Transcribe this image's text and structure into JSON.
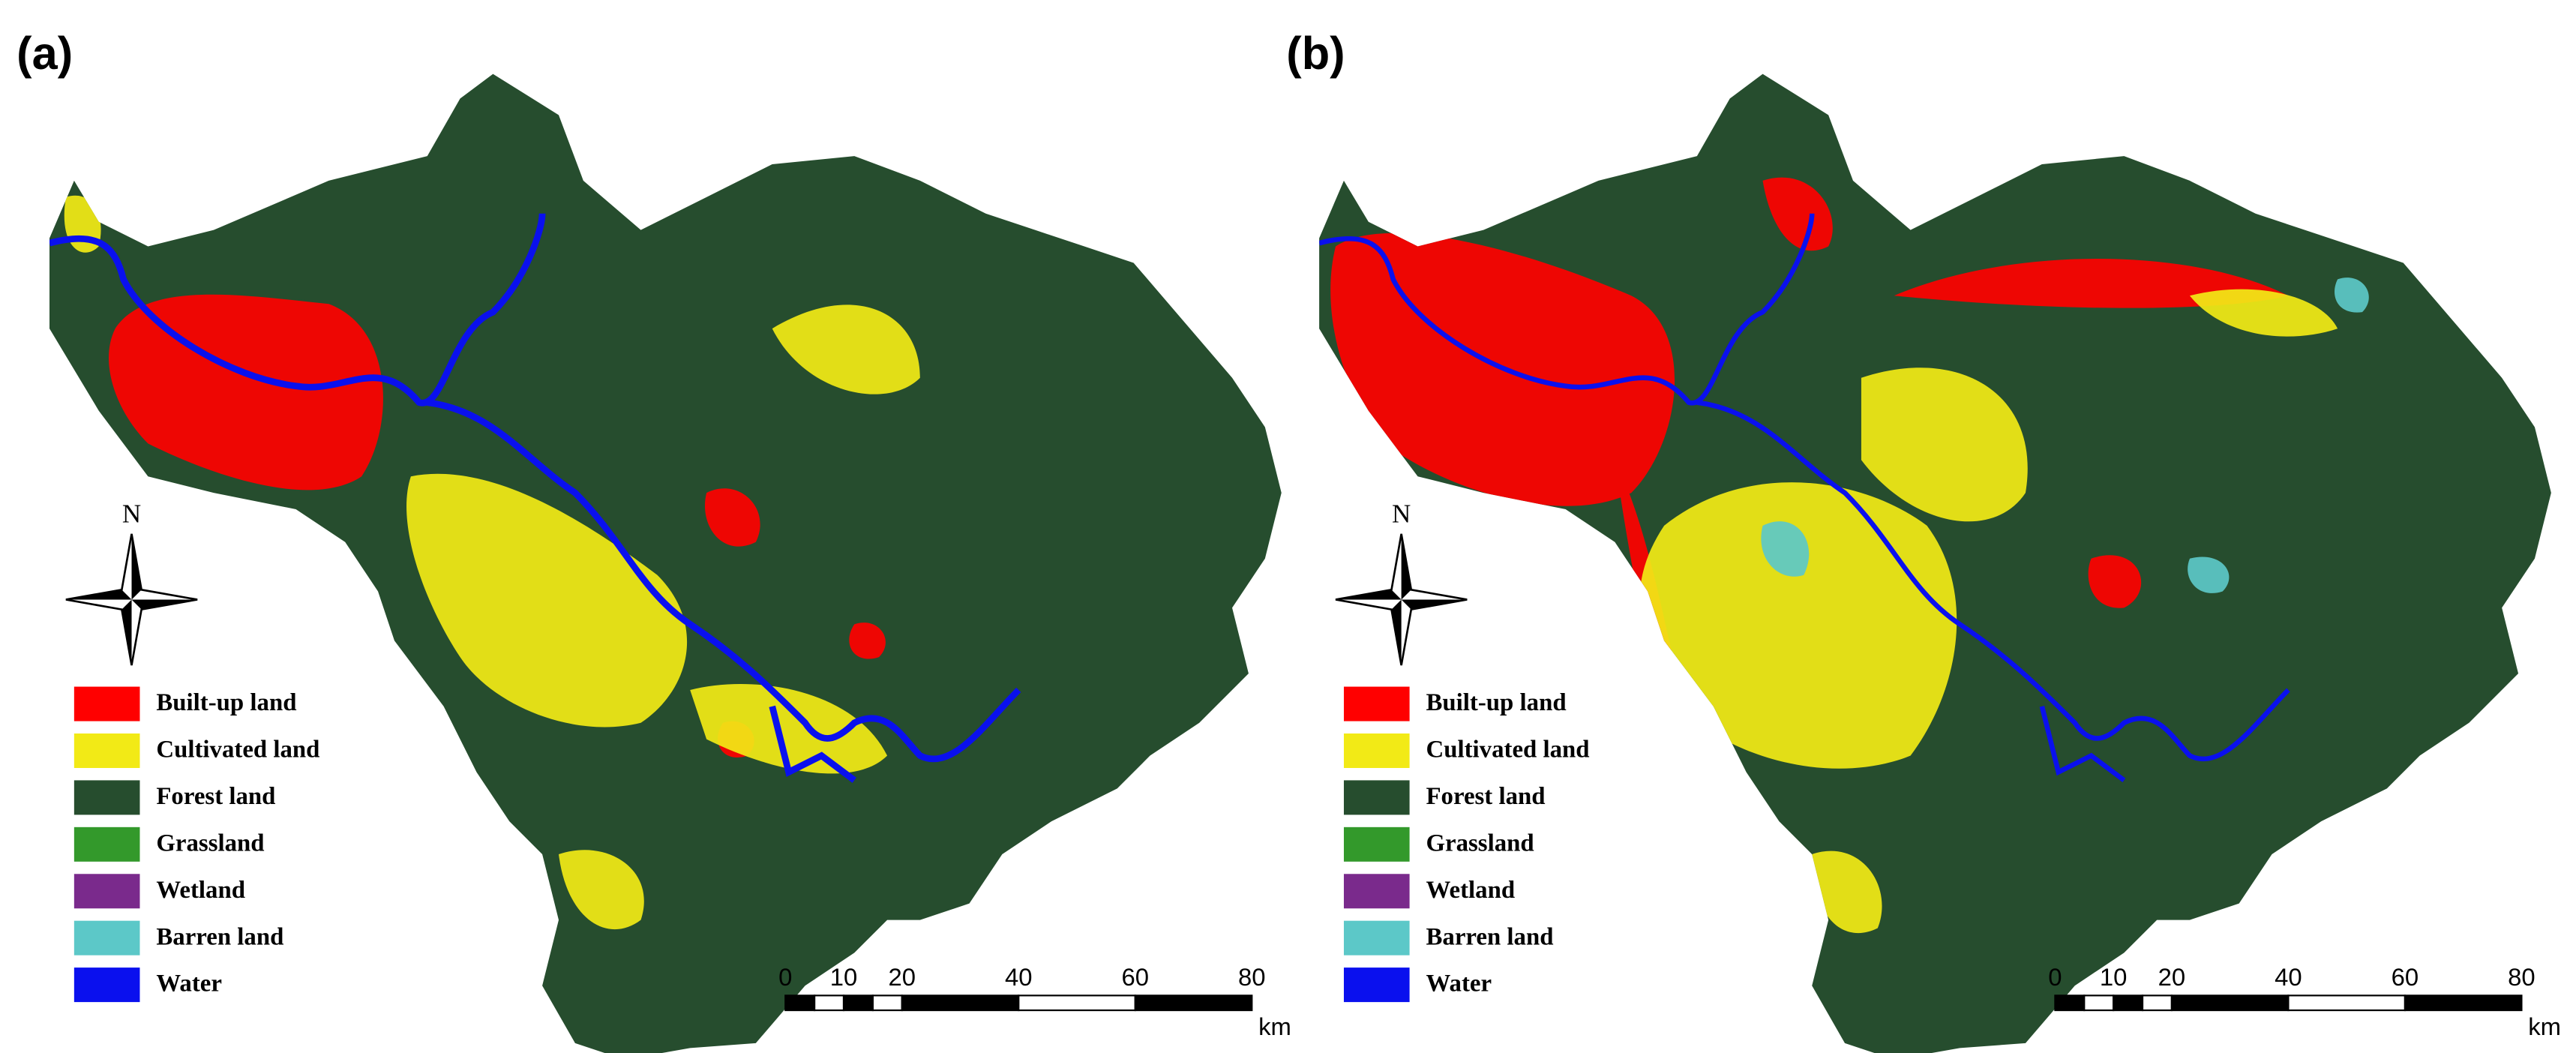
{
  "panels": [
    {
      "label": "(a)"
    },
    {
      "label": "(b)"
    }
  ],
  "legend": [
    {
      "label": "Built-up land",
      "color": "#ff0000"
    },
    {
      "label": "Cultivated land",
      "color": "#f2ea16"
    },
    {
      "label": "Forest land",
      "color": "#264d2e"
    },
    {
      "label": "Grassland",
      "color": "#33992b"
    },
    {
      "label": "Wetland",
      "color": "#7a2a8c"
    },
    {
      "label": "Barren land",
      "color": "#5cc8c8"
    },
    {
      "label": "Water",
      "color": "#0a10ee"
    }
  ],
  "compass": "N",
  "scale_bar": {
    "ticks": [
      0,
      10,
      20,
      40,
      60,
      80
    ],
    "unit": "km"
  }
}
